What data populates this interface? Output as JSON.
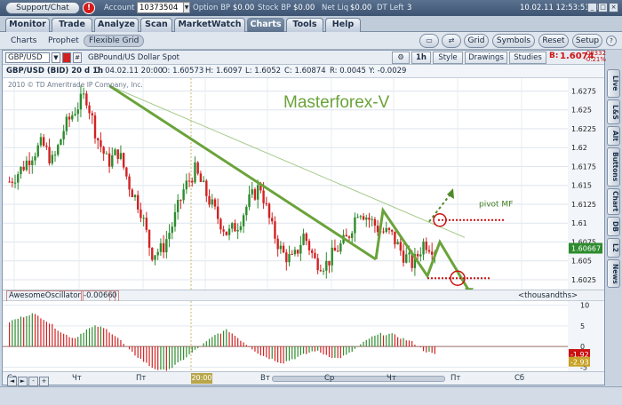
{
  "topbar": {
    "support_label": "Support/Chat",
    "alert_label": "!",
    "account_label": "Account",
    "account_value": "10373504",
    "option_bp_label": "Option BP",
    "option_bp_value": "$0.00",
    "stock_bp_label": "Stock BP",
    "stock_bp_value": "$0.00",
    "net_liq_label": "Net Liq",
    "net_liq_value": "$0.00",
    "dt_left_label": "DT Left",
    "dt_left_value": "3",
    "datetime": "10.02.11 12:53:51 EET",
    "win_min": "_",
    "win_max": "□",
    "win_close": "×"
  },
  "tabs": [
    "Monitor",
    "Trade",
    "Analyze",
    "Scan",
    "MarketWatch",
    "Charts",
    "Tools",
    "Help"
  ],
  "active_tab": "Charts",
  "subtabs": [
    "Charts",
    "Prophet",
    "Flexible Grid"
  ],
  "active_subtab": "Flexible Grid",
  "toolbar": {
    "grid": "Grid",
    "symbols": "Symbols",
    "reset": "Reset",
    "setup": "Setup"
  },
  "chart_header": {
    "symbol": "GBP/USD",
    "description": "GBPound/US Dollar Spot",
    "period": "1h",
    "style": "Style",
    "drawings": "Drawings",
    "studies": "Studies",
    "bid_label": "B:",
    "bid_value": "1.6074",
    "change_abs": "-.00332",
    "change_pct": "-0.21%"
  },
  "info_row": {
    "title": "GBP/USD (BID) 20 d 1h",
    "date": "D: 04.02.11 20:00",
    "open": "O: 1.60573",
    "high": "H: 1.6097",
    "low": "L: 1.6052",
    "close": "C: 1.60874",
    "range": "R: 0.0045",
    "y": "Y: -0.0029"
  },
  "copyright": "2010 © TD Ameritrade IP Company, Inc.",
  "watermark": "Masterforex-V",
  "annotation_pivot": "pivot MF",
  "price_axis": [
    "1.6275",
    "1.625",
    "1.6225",
    "1.62",
    "1.6175",
    "1.615",
    "1.6125",
    "1.61",
    "1.6075",
    "1.605",
    "1.6025"
  ],
  "current_price_tag": "1.60667",
  "oscillator": {
    "name": "AwesomeOscillator",
    "value": "-0.0066",
    "zero": "0",
    "units": "<thousandths>",
    "axis": [
      "10",
      "5",
      "0",
      "-5"
    ],
    "tag_red": "-1.92",
    "tag_yellow": "-2.93"
  },
  "x_axis": [
    "Ср",
    "Чт",
    "Пт",
    "20:00",
    "Вт",
    "Ср",
    "Чт",
    "Пт",
    "Сб"
  ],
  "nav_buttons": [
    "◄",
    "►",
    "-",
    "+"
  ],
  "right_tabs": [
    "Live",
    "L&S",
    "Alt",
    "Buttons",
    "Chart",
    "DB",
    "L2",
    "News"
  ],
  "colors": {
    "up_candle": "#2e8b2e",
    "down_candle": "#d22222",
    "trendline": "#6aa33a",
    "pivot_line": "#cc1111",
    "accent_bar": "#4a6384"
  },
  "chart_data": [
    {
      "type": "candlestick",
      "title": "GBP/USD (BID) 20 d 1h",
      "x_labels": [
        "Ср",
        "Чт",
        "Пт",
        "Вт",
        "Ср",
        "Чт",
        "Пт",
        "Сб"
      ],
      "ylim": [
        1.6012,
        1.6292
      ],
      "grid": true,
      "close_path": [
        1.6155,
        1.617,
        1.619,
        1.6205,
        1.618,
        1.6225,
        1.625,
        1.627,
        1.6215,
        1.618,
        1.6195,
        1.615,
        1.612,
        1.606,
        1.6065,
        1.61,
        1.6145,
        1.617,
        1.614,
        1.611,
        1.6085,
        1.61,
        1.613,
        1.615,
        1.6095,
        1.606,
        1.605,
        1.6085,
        1.605,
        1.6045,
        1.6065,
        1.608,
        1.612,
        1.6105,
        1.609,
        1.6085,
        1.606,
        1.6045,
        1.6075,
        1.6067
      ]
    },
    {
      "type": "bar",
      "title": "AwesomeOscillator",
      "ylim": [
        -6,
        11
      ],
      "values": [
        6,
        7,
        8,
        7,
        5,
        3,
        2,
        4,
        5,
        4,
        2,
        -1,
        -3,
        -5,
        -6,
        -5,
        -3,
        -1,
        1,
        3,
        4,
        2,
        0,
        -2,
        -3,
        -4,
        -3,
        -2,
        -1,
        -2,
        -3,
        -2,
        0,
        2,
        3,
        3,
        2,
        1,
        -1,
        -2
      ]
    }
  ]
}
